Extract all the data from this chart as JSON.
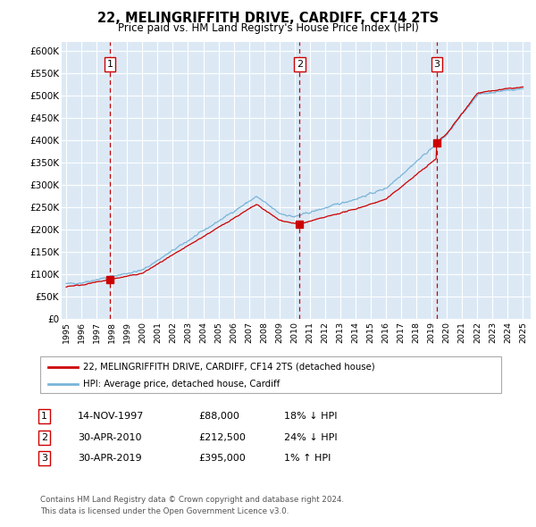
{
  "title": "22, MELINGRIFFITH DRIVE, CARDIFF, CF14 2TS",
  "subtitle": "Price paid vs. HM Land Registry's House Price Index (HPI)",
  "ylim": [
    0,
    620000
  ],
  "yticks": [
    0,
    50000,
    100000,
    150000,
    200000,
    250000,
    300000,
    350000,
    400000,
    450000,
    500000,
    550000,
    600000
  ],
  "ytick_labels": [
    "£0",
    "£50K",
    "£100K",
    "£150K",
    "£200K",
    "£250K",
    "£300K",
    "£350K",
    "£400K",
    "£450K",
    "£500K",
    "£550K",
    "£600K"
  ],
  "plot_bg_color": "#dce9f5",
  "hpi_color": "#7ab4d8",
  "price_color": "#cc0000",
  "vline_color": "#cc0000",
  "grid_color": "#ffffff",
  "transactions": [
    {
      "date": 1997.87,
      "price": 88000,
      "label": "1"
    },
    {
      "date": 2010.33,
      "price": 212500,
      "label": "2"
    },
    {
      "date": 2019.33,
      "price": 395000,
      "label": "3"
    }
  ],
  "table_rows": [
    {
      "num": "1",
      "date": "14-NOV-1997",
      "price": "£88,000",
      "hpi": "18% ↓ HPI"
    },
    {
      "num": "2",
      "date": "30-APR-2010",
      "price": "£212,500",
      "hpi": "24% ↓ HPI"
    },
    {
      "num": "3",
      "date": "30-APR-2019",
      "price": "£395,000",
      "hpi": "1% ↑ HPI"
    }
  ],
  "legend_house": "22, MELINGRIFFITH DRIVE, CARDIFF, CF14 2TS (detached house)",
  "legend_hpi": "HPI: Average price, detached house, Cardiff",
  "footnote1": "Contains HM Land Registry data © Crown copyright and database right 2024.",
  "footnote2": "This data is licensed under the Open Government Licence v3.0."
}
